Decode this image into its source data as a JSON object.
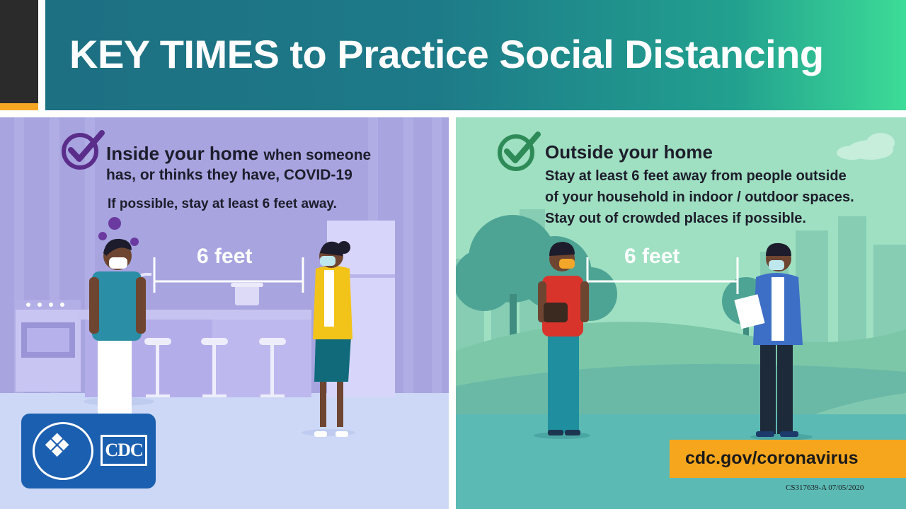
{
  "header": {
    "title": "KEY TIMES to Practice Social Distancing"
  },
  "left_panel": {
    "heading": "Inside your home",
    "heading_suffix": "when someone",
    "line2": "has, or thinks they have, COVID-19",
    "note": "If possible, stay at least 6 feet away.",
    "distance_label": "6 feet",
    "icon": "checkmark-circle-icon"
  },
  "right_panel": {
    "heading": "Outside your home",
    "line1": "Stay at least 6 feet away from people outside",
    "line2": "of your household in indoor / outdoor spaces.",
    "line3": "Stay out of crowded places if possible.",
    "distance_label": "6 feet",
    "icon": "checkmark-circle-icon"
  },
  "footer": {
    "url": "cdc.gov/coronavirus",
    "code": "CS317639-A 07/05/2020",
    "logo_text": "CDC"
  },
  "colors": {
    "header_gradient_start": "#1d6f82",
    "header_gradient_end": "#3ddc97",
    "left_panel_bg": "#a7a4e0",
    "right_panel_bg": "#9fe0c2",
    "check_left": "#5b2d8a",
    "check_right": "#2e8b57",
    "url_badge": "#f6a61c",
    "logo_blue": "#1b5fb0"
  }
}
